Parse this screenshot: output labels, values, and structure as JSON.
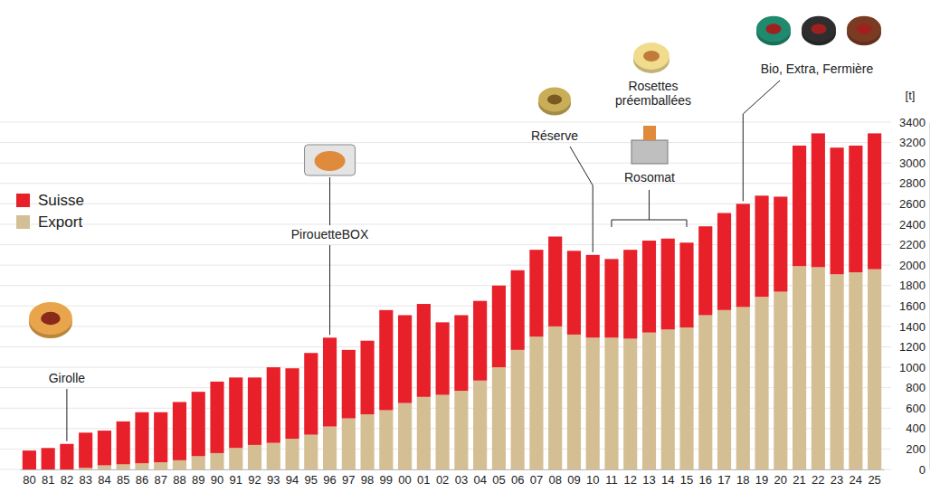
{
  "chart_data": {
    "type": "bar",
    "stacked": true,
    "grid": true,
    "legend": "left",
    "ylabel": "[t]",
    "categories": [
      "80",
      "81",
      "82",
      "83",
      "84",
      "85",
      "86",
      "87",
      "88",
      "89",
      "90",
      "91",
      "92",
      "93",
      "94",
      "95",
      "96",
      "97",
      "98",
      "99",
      "00",
      "01",
      "02",
      "03",
      "04",
      "05",
      "06",
      "07",
      "08",
      "09",
      "10",
      "11",
      "12",
      "13",
      "14",
      "15",
      "16",
      "17",
      "18",
      "19",
      "20",
      "21",
      "22",
      "23",
      "24",
      "25"
    ],
    "series": [
      {
        "name": "Suisse",
        "color": "#e8202a",
        "values": [
          185,
          210,
          250,
          345,
          340,
          420,
          500,
          490,
          570,
          630,
          700,
          690,
          660,
          740,
          690,
          800,
          870,
          670,
          720,
          980,
          860,
          910,
          710,
          740,
          780,
          800,
          780,
          850,
          880,
          820,
          810,
          770,
          870,
          900,
          890,
          830,
          870,
          950,
          1010,
          990,
          930,
          1180,
          1310,
          1240,
          1240,
          1330
        ]
      },
      {
        "name": "Export",
        "color": "#d4bf94",
        "values": [
          0,
          0,
          0,
          15,
          40,
          50,
          60,
          70,
          90,
          130,
          160,
          210,
          240,
          260,
          300,
          340,
          420,
          500,
          540,
          580,
          650,
          710,
          730,
          770,
          870,
          1000,
          1170,
          1300,
          1400,
          1320,
          1290,
          1290,
          1280,
          1340,
          1370,
          1390,
          1510,
          1560,
          1590,
          1690,
          1740,
          1990,
          1980,
          1910,
          1930,
          1960
        ]
      }
    ],
    "ylim": [
      0,
      3400
    ],
    "yticks": [
      0,
      200,
      400,
      600,
      800,
      1000,
      1200,
      1400,
      1600,
      1800,
      2000,
      2200,
      2400,
      2600,
      2800,
      3000,
      3200,
      3400
    ],
    "annotations": [
      {
        "labels": [
          "Girolle"
        ],
        "from": "82",
        "to": "82"
      },
      {
        "labels": [
          "PirouetteBOX"
        ],
        "from": "96",
        "to": "96"
      },
      {
        "labels": [
          "Réserve"
        ],
        "from": "10",
        "to": "10"
      },
      {
        "labels": [
          "Rosettes préemballées",
          "Rosomat"
        ],
        "from": "11",
        "to": "15"
      },
      {
        "labels": [
          "Bio, Extra, Fermière"
        ],
        "from": "18",
        "to": "18"
      }
    ]
  }
}
